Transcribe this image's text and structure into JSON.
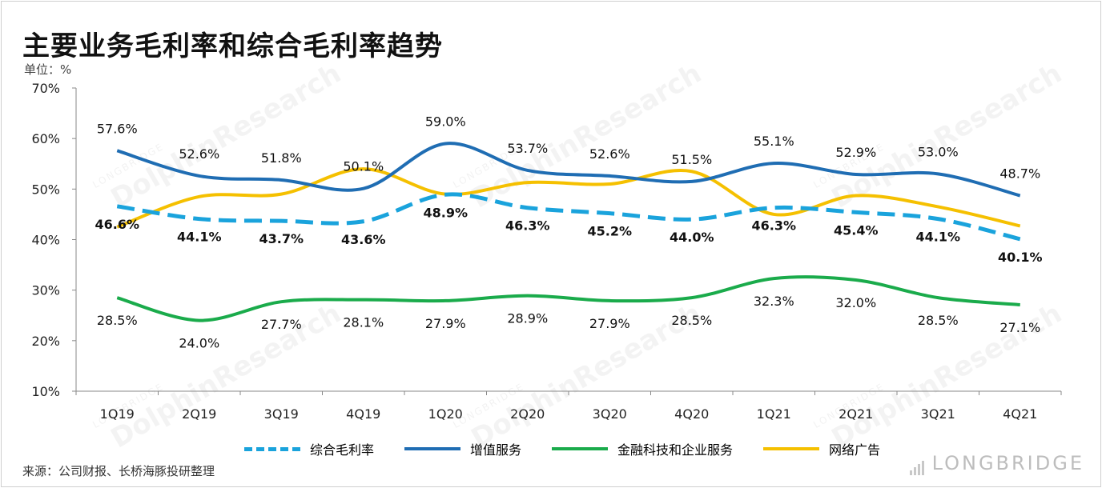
{
  "title": "主要业务毛利率和综合毛利率趋势",
  "unit_label": "单位：%",
  "source": "来源：公司财报、长桥海豚投研整理",
  "watermark": {
    "text": "DolphinResearch",
    "sub": "LONGBRIDGE",
    "brand": "LONGBRIDGE"
  },
  "chart_data": {
    "type": "line",
    "categories": [
      "1Q19",
      "2Q19",
      "3Q19",
      "4Q19",
      "1Q20",
      "2Q20",
      "3Q20",
      "4Q20",
      "1Q21",
      "2Q21",
      "3Q21",
      "4Q21"
    ],
    "ylim": [
      10,
      70
    ],
    "yticks": [
      "10%",
      "20%",
      "30%",
      "40%",
      "50%",
      "60%",
      "70%"
    ],
    "ytick_values": [
      10,
      20,
      30,
      40,
      50,
      60,
      70
    ],
    "legend_position": "bottom",
    "series": [
      {
        "name": "综合毛利率",
        "color": "#1aa3dc",
        "dashed": true,
        "bold_labels": true,
        "values": [
          46.6,
          44.1,
          43.7,
          43.6,
          48.9,
          46.3,
          45.2,
          44.0,
          46.3,
          45.4,
          44.1,
          40.1
        ],
        "labels": [
          "46.6%",
          "44.1%",
          "43.7%",
          "43.6%",
          "48.9%",
          "46.3%",
          "45.2%",
          "44.0%",
          "46.3%",
          "45.4%",
          "44.1%",
          "40.1%"
        ]
      },
      {
        "name": "增值服务",
        "color": "#1f6db3",
        "dashed": false,
        "bold_labels": false,
        "values": [
          57.6,
          52.6,
          51.8,
          50.1,
          59.0,
          53.7,
          52.6,
          51.5,
          55.1,
          52.9,
          53.0,
          48.7
        ],
        "labels": [
          "57.6%",
          "52.6%",
          "51.8%",
          "50.1%",
          "59.0%",
          "53.7%",
          "52.6%",
          "51.5%",
          "55.1%",
          "52.9%",
          "53.0%",
          "48.7%"
        ]
      },
      {
        "name": "金融科技和企业服务",
        "color": "#1aab4b",
        "dashed": false,
        "bold_labels": false,
        "values": [
          28.5,
          24.0,
          27.7,
          28.1,
          27.9,
          28.9,
          27.9,
          28.5,
          32.3,
          32.0,
          28.5,
          27.1
        ],
        "labels": [
          "28.5%",
          "24.0%",
          "27.7%",
          "28.1%",
          "27.9%",
          "28.9%",
          "27.9%",
          "28.5%",
          "32.3%",
          "32.0%",
          "28.5%",
          "27.1%"
        ]
      },
      {
        "name": "网络广告",
        "color": "#f5c000",
        "dashed": false,
        "bold_labels": false,
        "values": [
          42.5,
          48.5,
          49.0,
          54.0,
          49.0,
          51.3,
          51.0,
          53.5,
          45.0,
          48.7,
          46.5,
          42.7
        ]
      }
    ]
  }
}
